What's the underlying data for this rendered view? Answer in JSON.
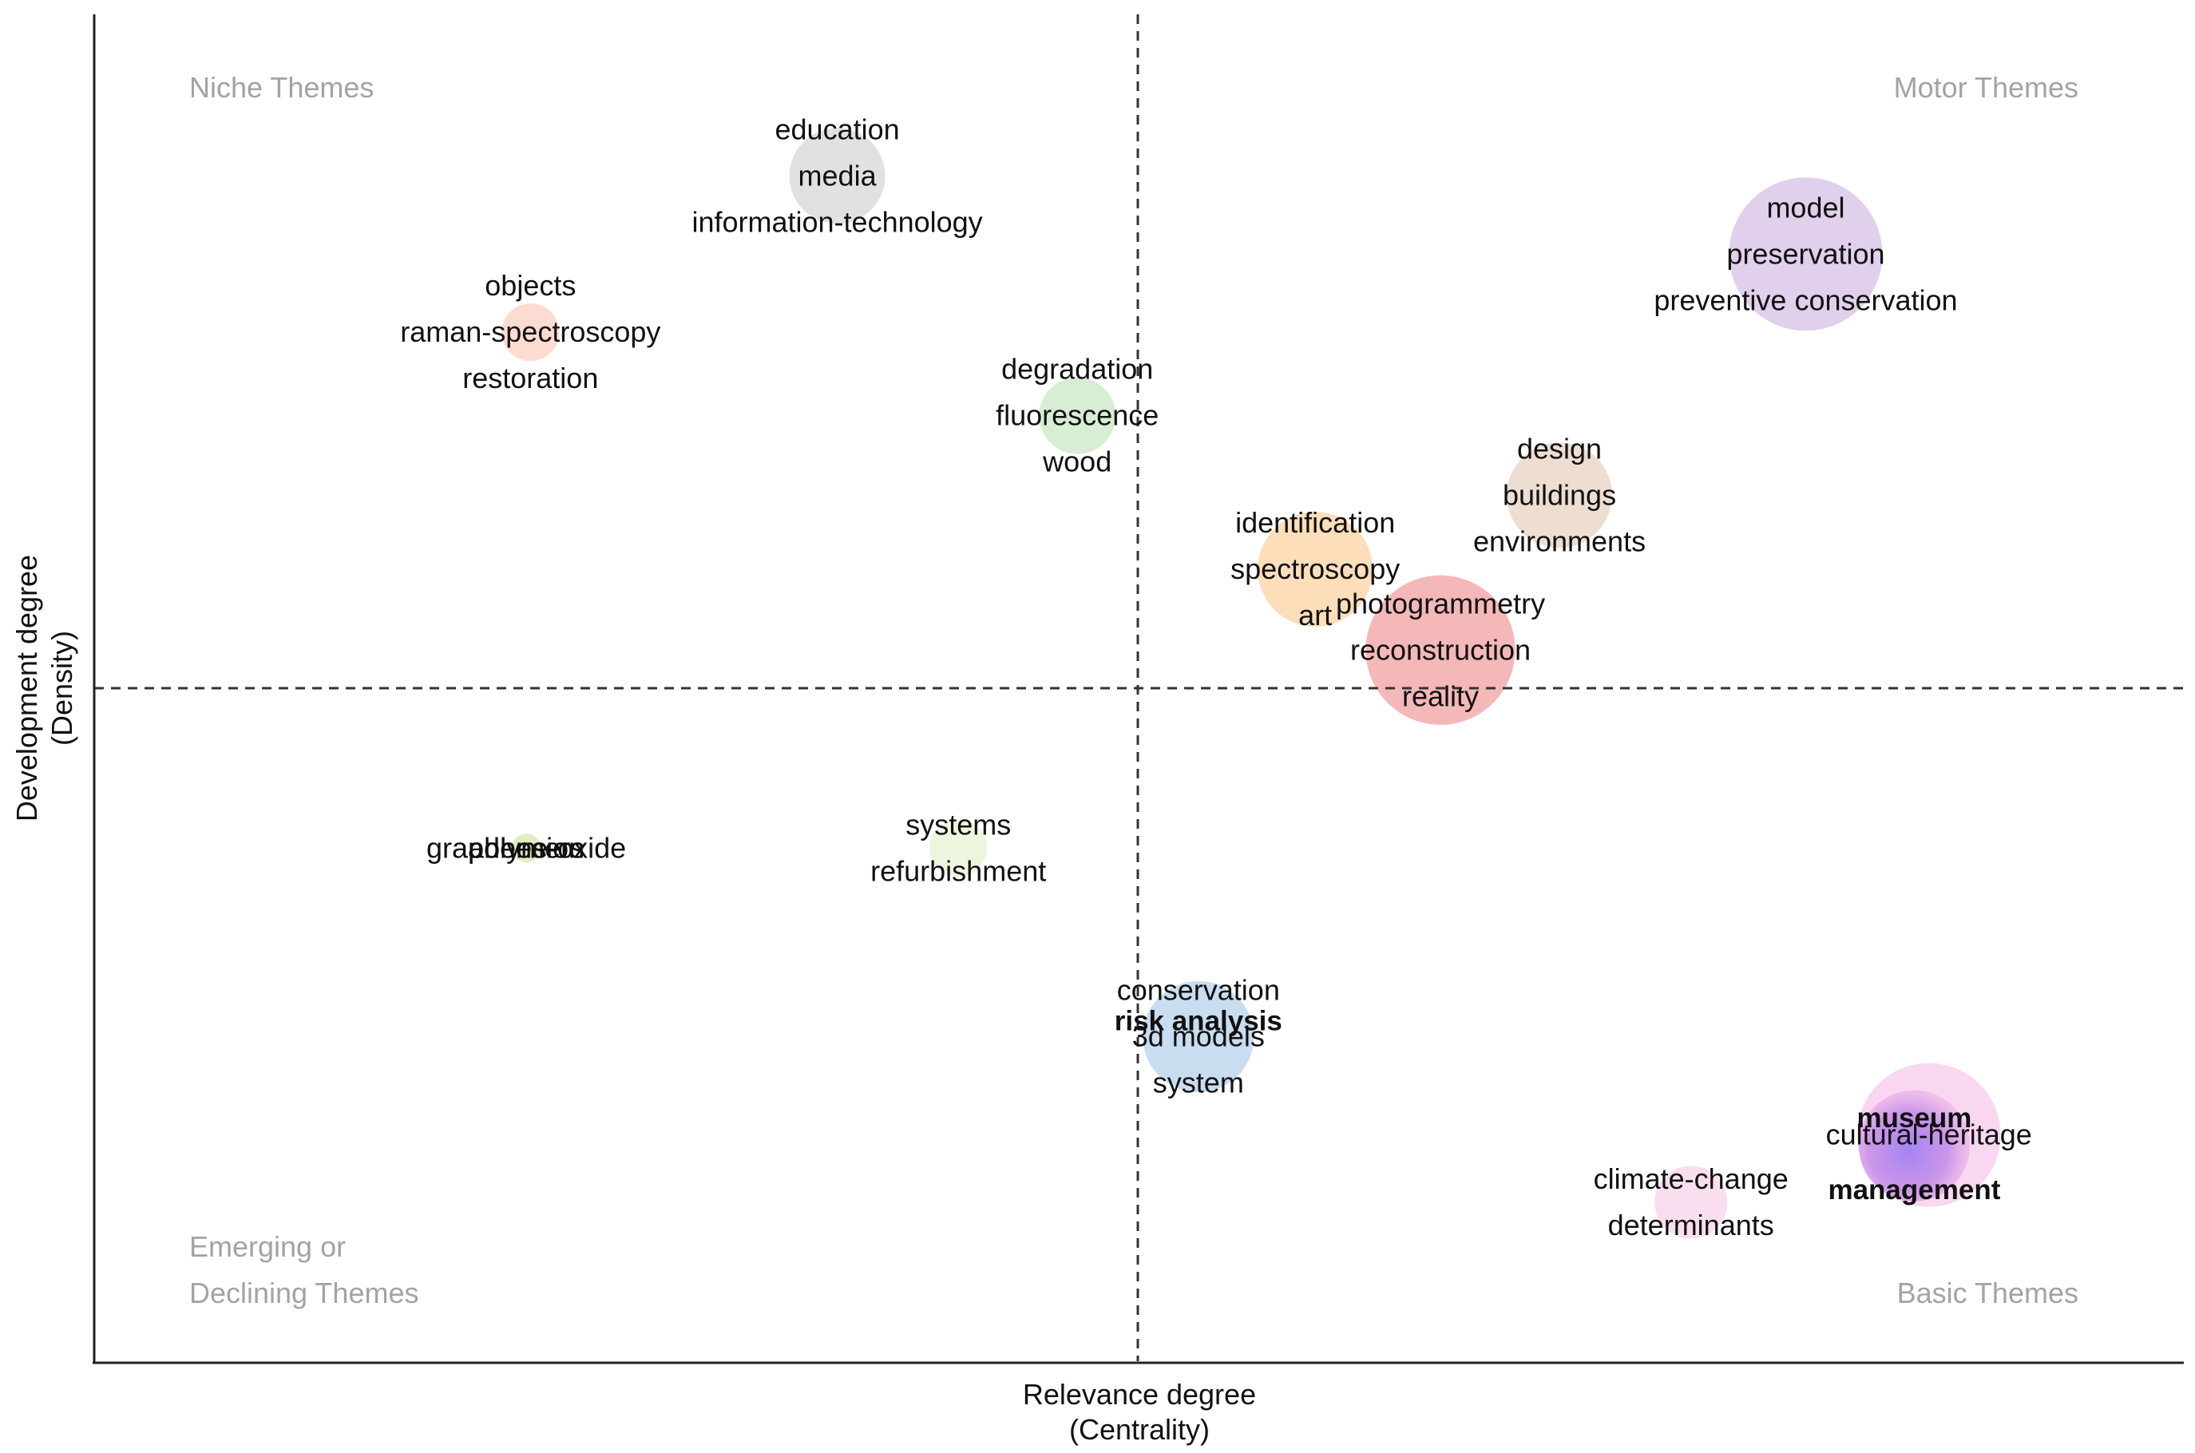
{
  "chart_data": {
    "type": "scatter",
    "title": "",
    "xlabel": [
      "Relevance degree",
      "(Centrality)"
    ],
    "ylabel": [
      "Development degree",
      "(Density)"
    ],
    "xlim": [
      0,
      1
    ],
    "ylim": [
      0,
      1
    ],
    "x_reference": 0.5,
    "y_reference": 0.5,
    "ticks": "none",
    "grid": false,
    "quadrant_labels": {
      "top_left": [
        "Niche Themes"
      ],
      "top_right": [
        "Motor Themes"
      ],
      "bottom_left": [
        "Emerging or",
        "Declining Themes"
      ],
      "bottom_right": [
        "Basic Themes"
      ]
    },
    "clusters": [
      {
        "x": 0.356,
        "y": 0.88,
        "size": 0.5,
        "color": "#d9d9d9",
        "labels": [
          "education",
          "media",
          "information-technology"
        ]
      },
      {
        "x": 0.209,
        "y": 0.764,
        "size": 0.3,
        "color": "#fbd2c4",
        "labels": [
          "objects",
          "raman-spectroscopy",
          "restoration"
        ]
      },
      {
        "x": 0.471,
        "y": 0.702,
        "size": 0.4,
        "color": "#cdeacb",
        "labels": [
          "degradation",
          "fluorescence",
          "wood"
        ]
      },
      {
        "x": 0.82,
        "y": 0.822,
        "size": 0.8,
        "color": "#d8c4e6",
        "labels": [
          "model",
          "preservation",
          "preventive conservation"
        ]
      },
      {
        "x": 0.702,
        "y": 0.643,
        "size": 0.55,
        "color": "#ead6c7",
        "labels": [
          "design",
          "buildings",
          "environments"
        ]
      },
      {
        "x": 0.585,
        "y": 0.588,
        "size": 0.6,
        "color": "#fbd6a9",
        "labels": [
          "identification",
          "spectroscopy",
          "art"
        ]
      },
      {
        "x": 0.645,
        "y": 0.528,
        "size": 0.78,
        "color": "#f3a6a6",
        "labels": [
          "photogrammetry",
          "reconstruction",
          "reality"
        ]
      },
      {
        "x": 0.207,
        "y": 0.381,
        "size": 0.1,
        "color": "#dbe8b5",
        "labels": [
          "graphene-oxide",
          "adhesion",
          "polymers"
        ]
      },
      {
        "x": 0.414,
        "y": 0.381,
        "size": 0.3,
        "color": "#e8f3d6",
        "labels": [
          "systems",
          "refurbishment"
        ]
      },
      {
        "x": 0.529,
        "y": 0.241,
        "size": 0.58,
        "color": "#bcd5ee",
        "labels": [
          "conservation",
          "3d models",
          "system"
        ]
      },
      {
        "x": 0.529,
        "y": 0.241,
        "size": 0.0,
        "color": "#bcd5ee",
        "labels": [
          "risk analysis"
        ],
        "bold": true
      },
      {
        "x": 0.765,
        "y": 0.118,
        "size": 0.38,
        "color": "#f6d6ea",
        "labels": [
          "climate-change",
          "determinants"
        ]
      },
      {
        "x": 0.879,
        "y": 0.168,
        "size": 0.75,
        "color": "#f7cdee",
        "labels": [
          "cultural-heritage"
        ]
      },
      {
        "x": 0.872,
        "y": 0.16,
        "size": 0.58,
        "color": "#c79af0",
        "labels": [
          "museum",
          "management"
        ],
        "bold": true
      }
    ]
  }
}
